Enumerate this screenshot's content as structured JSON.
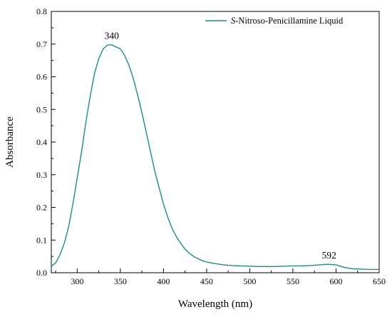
{
  "chart_data": {
    "type": "line",
    "xlabel": "Wavelength (nm)",
    "ylabel": "Absorbance",
    "xlim": [
      270,
      650
    ],
    "ylim": [
      0.0,
      0.8
    ],
    "xticks": [
      "300",
      "350",
      "400",
      "450",
      "500",
      "550",
      "600",
      "650"
    ],
    "yticks": [
      "0.0",
      "0.1",
      "0.2",
      "0.3",
      "0.4",
      "0.5",
      "0.6",
      "0.7",
      "0.8"
    ],
    "grid": false,
    "legend_position": "top-right",
    "line_color": "#1f8a8a",
    "series": [
      {
        "name_italic": "S",
        "name_rest": "-Nitroso-Penicillamine Liquid",
        "x": [
          270,
          275,
          280,
          285,
          290,
          295,
          300,
          305,
          310,
          315,
          320,
          325,
          330,
          335,
          340,
          343,
          346,
          348,
          350,
          352,
          355,
          360,
          365,
          370,
          375,
          380,
          385,
          390,
          395,
          400,
          405,
          410,
          415,
          420,
          425,
          430,
          435,
          440,
          445,
          450,
          460,
          470,
          480,
          490,
          500,
          510,
          520,
          530,
          540,
          550,
          560,
          570,
          575,
          580,
          585,
          590,
          595,
          600,
          605,
          610,
          620,
          630,
          640,
          650
        ],
        "y": [
          0.02,
          0.03,
          0.055,
          0.09,
          0.14,
          0.21,
          0.29,
          0.37,
          0.46,
          0.54,
          0.61,
          0.655,
          0.685,
          0.697,
          0.698,
          0.694,
          0.69,
          0.688,
          0.685,
          0.678,
          0.665,
          0.635,
          0.595,
          0.545,
          0.49,
          0.43,
          0.37,
          0.31,
          0.26,
          0.21,
          0.17,
          0.135,
          0.11,
          0.09,
          0.072,
          0.06,
          0.05,
          0.043,
          0.037,
          0.033,
          0.028,
          0.024,
          0.022,
          0.021,
          0.02,
          0.019,
          0.019,
          0.019,
          0.02,
          0.021,
          0.021,
          0.022,
          0.023,
          0.024,
          0.025,
          0.026,
          0.025,
          0.024,
          0.02,
          0.016,
          0.012,
          0.011,
          0.01,
          0.01
        ]
      }
    ],
    "annotations": [
      {
        "text": "340",
        "x": 340,
        "y": 0.698
      },
      {
        "text": "592",
        "x": 592,
        "y": 0.026
      }
    ]
  }
}
